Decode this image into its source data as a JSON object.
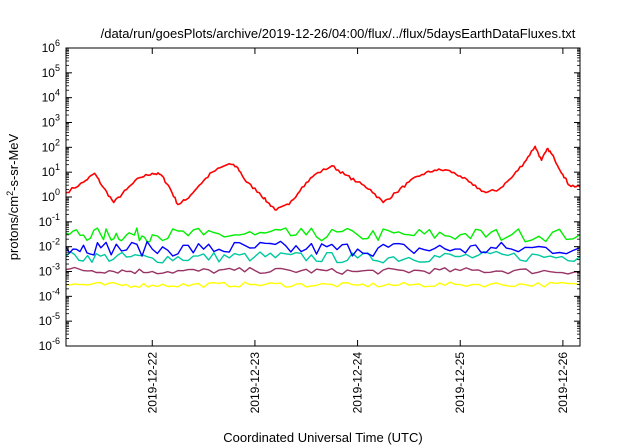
{
  "chart_data": {
    "type": "line",
    "title": "/data/run/goesPlots/archive/2019-12-26/04:00/flux/../flux/5daysEarthDataFluxes.txt",
    "xlabel": "Coordinated Universal Time (UTC)",
    "ylabel_main": "protons/cm",
    "ylabel_sup": "2",
    "ylabel_rest": "-s-sr-MeV",
    "yscale": "log",
    "ylim": [
      1e-06,
      1000000.0
    ],
    "y_ticks": [
      {
        "value": 1e-06,
        "base": "10",
        "exp": "-6"
      },
      {
        "value": 1e-05,
        "base": "10",
        "exp": "-5"
      },
      {
        "value": 0.0001,
        "base": "10",
        "exp": "-4"
      },
      {
        "value": 0.001,
        "base": "10",
        "exp": "-3"
      },
      {
        "value": 0.01,
        "base": "10",
        "exp": "-2"
      },
      {
        "value": 0.1,
        "base": "10",
        "exp": "-1"
      },
      {
        "value": 1,
        "base": "10",
        "exp": "0"
      },
      {
        "value": 10,
        "base": "10",
        "exp": "1"
      },
      {
        "value": 100,
        "base": "10",
        "exp": "2"
      },
      {
        "value": 1000,
        "base": "10",
        "exp": "3"
      },
      {
        "value": 10000,
        "base": "10",
        "exp": "4"
      },
      {
        "value": 100000,
        "base": "10",
        "exp": "5"
      },
      {
        "value": 1000000,
        "base": "10",
        "exp": "6"
      }
    ],
    "xlim": [
      "2019-12-21 03:50",
      "2019-12-26 04:00"
    ],
    "x_ticks": [
      {
        "value": "2019-12-22 00:00",
        "label": "2019-12-22"
      },
      {
        "value": "2019-12-23 00:00",
        "label": "2019-12-23"
      },
      {
        "value": "2019-12-24 00:00",
        "label": "2019-12-24"
      },
      {
        "value": "2019-12-25 00:00",
        "label": "2019-12-25"
      },
      {
        "value": "2019-12-26 00:00",
        "label": "2019-12-26"
      }
    ],
    "grid": false,
    "legend": "none",
    "series": [
      {
        "color": "#ff0000",
        "points": [
          [
            "2019-12-21 03:50",
            1.5
          ],
          [
            "2019-12-21 08:00",
            4
          ],
          [
            "2019-12-21 10:30",
            9
          ],
          [
            "2019-12-21 12:30",
            2.5
          ],
          [
            "2019-12-21 15:00",
            0.6
          ],
          [
            "2019-12-21 18:00",
            2
          ],
          [
            "2019-12-21 21:00",
            6
          ],
          [
            "2019-12-22 00:00",
            9
          ],
          [
            "2019-12-22 02:00",
            8
          ],
          [
            "2019-12-22 04:00",
            2.5
          ],
          [
            "2019-12-22 06:00",
            0.5
          ],
          [
            "2019-12-22 08:00",
            0.8
          ],
          [
            "2019-12-22 11:00",
            3
          ],
          [
            "2019-12-22 14:00",
            10
          ],
          [
            "2019-12-22 18:00",
            22
          ],
          [
            "2019-12-22 20:00",
            15
          ],
          [
            "2019-12-22 22:00",
            4
          ],
          [
            "2019-12-23 01:00",
            1.5
          ],
          [
            "2019-12-23 03:00",
            0.6
          ],
          [
            "2019-12-23 05:00",
            0.3
          ],
          [
            "2019-12-23 08:00",
            0.5
          ],
          [
            "2019-12-23 11:00",
            2.5
          ],
          [
            "2019-12-23 14:00",
            8
          ],
          [
            "2019-12-23 18:00",
            18
          ],
          [
            "2019-12-23 21:00",
            8
          ],
          [
            "2019-12-24 00:00",
            4
          ],
          [
            "2019-12-24 03:00",
            2
          ],
          [
            "2019-12-24 06:00",
            0.6
          ],
          [
            "2019-12-24 09:00",
            1.5
          ],
          [
            "2019-12-24 12:00",
            4
          ],
          [
            "2019-12-24 15:00",
            8
          ],
          [
            "2019-12-24 18:00",
            12
          ],
          [
            "2019-12-24 21:00",
            12
          ],
          [
            "2019-12-25 00:00",
            7
          ],
          [
            "2019-12-25 03:00",
            3
          ],
          [
            "2019-12-25 06:00",
            1.5
          ],
          [
            "2019-12-25 09:00",
            2
          ],
          [
            "2019-12-25 12:00",
            6
          ],
          [
            "2019-12-25 15:00",
            25
          ],
          [
            "2019-12-25 17:30",
            110
          ],
          [
            "2019-12-25 19:00",
            30
          ],
          [
            "2019-12-25 20:30",
            90
          ],
          [
            "2019-12-25 22:00",
            35
          ],
          [
            "2019-12-26 00:00",
            8
          ],
          [
            "2019-12-26 01:30",
            3
          ],
          [
            "2019-12-26 04:00",
            2.5
          ]
        ]
      },
      {
        "color": "#00ee00",
        "points": [
          [
            "2019-12-21 03:50",
            0.035
          ],
          [
            "2019-12-21 12:00",
            0.03
          ],
          [
            "2019-12-21 18:00",
            0.03
          ],
          [
            "2019-12-22 00:00",
            0.03
          ],
          [
            "2019-12-22 12:00",
            0.03
          ],
          [
            "2019-12-23 00:00",
            0.03
          ],
          [
            "2019-12-23 12:00",
            0.03
          ],
          [
            "2019-12-24 00:00",
            0.03
          ],
          [
            "2019-12-24 12:00",
            0.03
          ],
          [
            "2019-12-25 00:00",
            0.03
          ],
          [
            "2019-12-25 12:00",
            0.03
          ],
          [
            "2019-12-26 04:00",
            0.03
          ]
        ]
      },
      {
        "color": "#00c8a0",
        "points": [
          [
            "2019-12-21 03:50",
            0.004
          ],
          [
            "2019-12-22 00:00",
            0.0035
          ],
          [
            "2019-12-23 00:00",
            0.004
          ],
          [
            "2019-12-24 00:00",
            0.0035
          ],
          [
            "2019-12-25 00:00",
            0.004
          ],
          [
            "2019-12-26 04:00",
            0.004
          ]
        ]
      },
      {
        "color": "#0000ff",
        "points": [
          [
            "2019-12-21 03:50",
            0.01
          ],
          [
            "2019-12-21 12:00",
            0.009
          ],
          [
            "2019-12-22 00:00",
            0.008
          ],
          [
            "2019-12-22 12:00",
            0.008
          ],
          [
            "2019-12-23 00:00",
            0.009
          ],
          [
            "2019-12-23 12:00",
            0.008
          ],
          [
            "2019-12-24 00:00",
            0.008
          ],
          [
            "2019-12-24 12:00",
            0.008
          ],
          [
            "2019-12-25 00:00",
            0.008
          ],
          [
            "2019-12-25 12:00",
            0.008
          ],
          [
            "2019-12-26 04:00",
            0.009
          ]
        ]
      },
      {
        "color": "#993366",
        "points": [
          [
            "2019-12-21 03:50",
            0.0012
          ],
          [
            "2019-12-22 00:00",
            0.001
          ],
          [
            "2019-12-23 00:00",
            0.0011
          ],
          [
            "2019-12-24 00:00",
            0.001
          ],
          [
            "2019-12-25 00:00",
            0.0011
          ],
          [
            "2019-12-26 04:00",
            0.001
          ]
        ]
      },
      {
        "color": "#ffff00",
        "points": [
          [
            "2019-12-21 03:50",
            0.0003
          ],
          [
            "2019-12-22 00:00",
            0.00028
          ],
          [
            "2019-12-23 00:00",
            0.0003
          ],
          [
            "2019-12-24 00:00",
            0.00028
          ],
          [
            "2019-12-25 00:00",
            0.0003
          ],
          [
            "2019-12-26 04:00",
            0.0003
          ]
        ]
      }
    ]
  }
}
